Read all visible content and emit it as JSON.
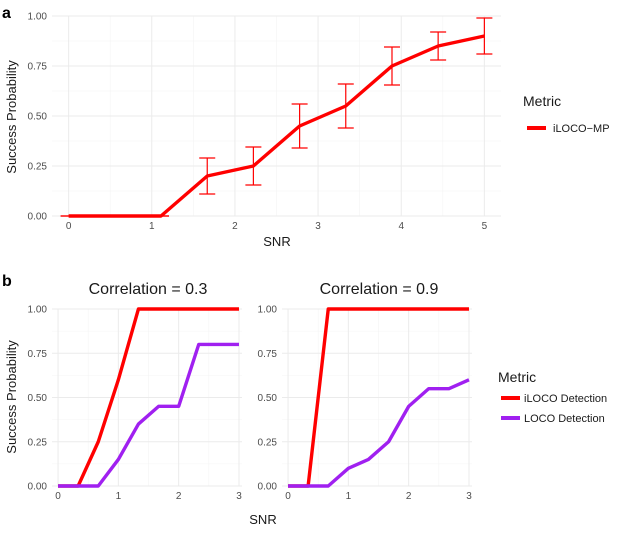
{
  "panel_a": {
    "letter": "a",
    "legend_title": "Metric",
    "chart_data": {
      "type": "line",
      "xlabel": "SNR",
      "ylabel": "Success Probability",
      "xlim": [
        -0.2,
        5.2
      ],
      "ylim": [
        0,
        1.0
      ],
      "xticks": [
        0,
        1,
        2,
        3,
        4,
        5
      ],
      "yticks": [
        0,
        0.25,
        0.5,
        0.75,
        1.0
      ],
      "xtick_labels": [
        "0",
        "1",
        "2",
        "3",
        "4",
        "5"
      ],
      "ytick_labels": [
        "0.00",
        "0.25",
        "0.50",
        "0.75",
        "1.00"
      ],
      "grid": true,
      "legend_position": "right",
      "series": [
        {
          "name": "iLOCO−MP",
          "color": "#ff0000",
          "x": [
            0,
            0.556,
            1.111,
            1.667,
            2.222,
            2.778,
            3.333,
            3.889,
            4.444,
            5.0
          ],
          "y": [
            0.0,
            0.0,
            0.0,
            0.2,
            0.25,
            0.45,
            0.55,
            0.75,
            0.85,
            0.9
          ],
          "error_low": [
            0.0,
            0.0,
            0.0,
            0.11,
            0.155,
            0.34,
            0.44,
            0.655,
            0.78,
            0.81
          ],
          "error_high": [
            0.0,
            0.0,
            0.0,
            0.29,
            0.345,
            0.56,
            0.66,
            0.845,
            0.92,
            0.99
          ]
        }
      ]
    }
  },
  "panel_b": {
    "letter": "b",
    "legend_title": "Metric",
    "shared_xlabel": "SNR",
    "shared_ylabel": "Success Probability",
    "chart_data": [
      {
        "type": "line",
        "title": "Correlation = 0.3",
        "xlim": [
          -0.1,
          3.05
        ],
        "ylim": [
          0,
          1.0
        ],
        "xticks": [
          0,
          1,
          2,
          3
        ],
        "yticks": [
          0,
          0.25,
          0.5,
          0.75,
          1.0
        ],
        "xtick_labels": [
          "0",
          "1",
          "2",
          "3"
        ],
        "ytick_labels": [
          "0.00",
          "0.25",
          "0.50",
          "0.75",
          "1.00"
        ],
        "grid": true,
        "series": [
          {
            "name": "iLOCO Detection",
            "color": "#ff0000",
            "x": [
              0,
              0.333,
              0.667,
              1.0,
              1.333,
              1.667,
              2.0,
              2.333,
              2.667,
              3.0
            ],
            "y": [
              0.0,
              0.0,
              0.25,
              0.6,
              1.0,
              1.0,
              1.0,
              1.0,
              1.0,
              1.0
            ]
          },
          {
            "name": "LOCO Detection",
            "color": "#a020f0",
            "x": [
              0,
              0.333,
              0.667,
              1.0,
              1.333,
              1.667,
              2.0,
              2.333,
              2.667,
              3.0
            ],
            "y": [
              0.0,
              0.0,
              0.0,
              0.15,
              0.35,
              0.45,
              0.45,
              0.8,
              0.8,
              0.8
            ]
          }
        ]
      },
      {
        "type": "line",
        "title": "Correlation = 0.9",
        "xlim": [
          -0.1,
          3.05
        ],
        "ylim": [
          0,
          1.0
        ],
        "xticks": [
          0,
          1,
          2,
          3
        ],
        "yticks": [
          0,
          0.25,
          0.5,
          0.75,
          1.0
        ],
        "xtick_labels": [
          "0",
          "1",
          "2",
          "3"
        ],
        "ytick_labels": [
          "0.00",
          "0.25",
          "0.50",
          "0.75",
          "1.00"
        ],
        "grid": true,
        "series": [
          {
            "name": "iLOCO Detection",
            "color": "#ff0000",
            "x": [
              0,
              0.333,
              0.667,
              1.0,
              1.333,
              1.667,
              2.0,
              2.333,
              2.667,
              3.0
            ],
            "y": [
              0.0,
              0.0,
              1.0,
              1.0,
              1.0,
              1.0,
              1.0,
              1.0,
              1.0,
              1.0
            ]
          },
          {
            "name": "LOCO Detection",
            "color": "#a020f0",
            "x": [
              0,
              0.333,
              0.667,
              1.0,
              1.333,
              1.667,
              2.0,
              2.333,
              2.667,
              3.0
            ],
            "y": [
              0.0,
              0.0,
              0.0,
              0.1,
              0.15,
              0.25,
              0.45,
              0.55,
              0.55,
              0.6
            ]
          }
        ]
      }
    ]
  }
}
